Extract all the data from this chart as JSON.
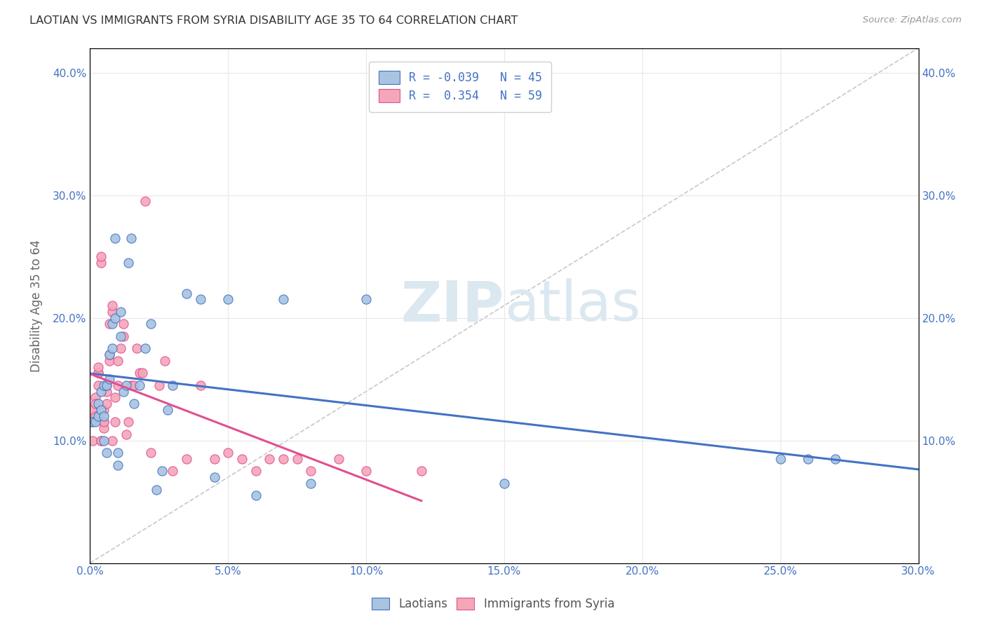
{
  "title": "LAOTIAN VS IMMIGRANTS FROM SYRIA DISABILITY AGE 35 TO 64 CORRELATION CHART",
  "source": "Source: ZipAtlas.com",
  "ylabel": "Disability Age 35 to 64",
  "xlim": [
    0.0,
    0.3
  ],
  "ylim": [
    0.0,
    0.42
  ],
  "xticks": [
    0.0,
    0.05,
    0.1,
    0.15,
    0.2,
    0.25,
    0.3
  ],
  "yticks": [
    0.1,
    0.2,
    0.3,
    0.4
  ],
  "color_laotian": "#a8c4e0",
  "color_syria": "#f4a7b9",
  "trendline_laotian": "#4472c4",
  "trendline_syria": "#e05090",
  "trendline_dashed_color": "#c8c8c8",
  "laotian_x": [
    0.001,
    0.002,
    0.003,
    0.003,
    0.004,
    0.004,
    0.005,
    0.005,
    0.005,
    0.006,
    0.006,
    0.007,
    0.007,
    0.008,
    0.008,
    0.009,
    0.009,
    0.01,
    0.01,
    0.011,
    0.011,
    0.012,
    0.013,
    0.014,
    0.015,
    0.016,
    0.018,
    0.02,
    0.022,
    0.024,
    0.026,
    0.028,
    0.03,
    0.035,
    0.04,
    0.045,
    0.05,
    0.06,
    0.07,
    0.08,
    0.1,
    0.15,
    0.25,
    0.26,
    0.27
  ],
  "laotian_y": [
    0.115,
    0.115,
    0.12,
    0.13,
    0.125,
    0.14,
    0.145,
    0.12,
    0.1,
    0.09,
    0.145,
    0.15,
    0.17,
    0.175,
    0.195,
    0.2,
    0.265,
    0.09,
    0.08,
    0.185,
    0.205,
    0.14,
    0.145,
    0.245,
    0.265,
    0.13,
    0.145,
    0.175,
    0.195,
    0.06,
    0.075,
    0.125,
    0.145,
    0.22,
    0.215,
    0.07,
    0.215,
    0.055,
    0.215,
    0.065,
    0.215,
    0.065,
    0.085,
    0.085,
    0.085
  ],
  "syria_x": [
    0.0005,
    0.001,
    0.001,
    0.002,
    0.002,
    0.002,
    0.003,
    0.003,
    0.003,
    0.003,
    0.004,
    0.004,
    0.004,
    0.004,
    0.005,
    0.005,
    0.005,
    0.005,
    0.006,
    0.006,
    0.006,
    0.007,
    0.007,
    0.007,
    0.008,
    0.008,
    0.008,
    0.009,
    0.009,
    0.01,
    0.01,
    0.011,
    0.012,
    0.012,
    0.013,
    0.014,
    0.015,
    0.016,
    0.017,
    0.018,
    0.019,
    0.02,
    0.022,
    0.025,
    0.027,
    0.03,
    0.035,
    0.04,
    0.045,
    0.05,
    0.055,
    0.06,
    0.065,
    0.07,
    0.075,
    0.08,
    0.09,
    0.1,
    0.12
  ],
  "syria_y": [
    0.115,
    0.1,
    0.125,
    0.12,
    0.135,
    0.13,
    0.145,
    0.155,
    0.155,
    0.16,
    0.245,
    0.25,
    0.1,
    0.1,
    0.115,
    0.11,
    0.115,
    0.125,
    0.13,
    0.14,
    0.145,
    0.165,
    0.17,
    0.195,
    0.205,
    0.21,
    0.1,
    0.115,
    0.135,
    0.145,
    0.165,
    0.175,
    0.185,
    0.195,
    0.105,
    0.115,
    0.145,
    0.145,
    0.175,
    0.155,
    0.155,
    0.295,
    0.09,
    0.145,
    0.165,
    0.075,
    0.085,
    0.145,
    0.085,
    0.09,
    0.085,
    0.075,
    0.085,
    0.085,
    0.085,
    0.075,
    0.085,
    0.075,
    0.075
  ],
  "background_color": "#ffffff",
  "grid_color": "#e8e8e8",
  "watermark_color": "#dce8f0"
}
